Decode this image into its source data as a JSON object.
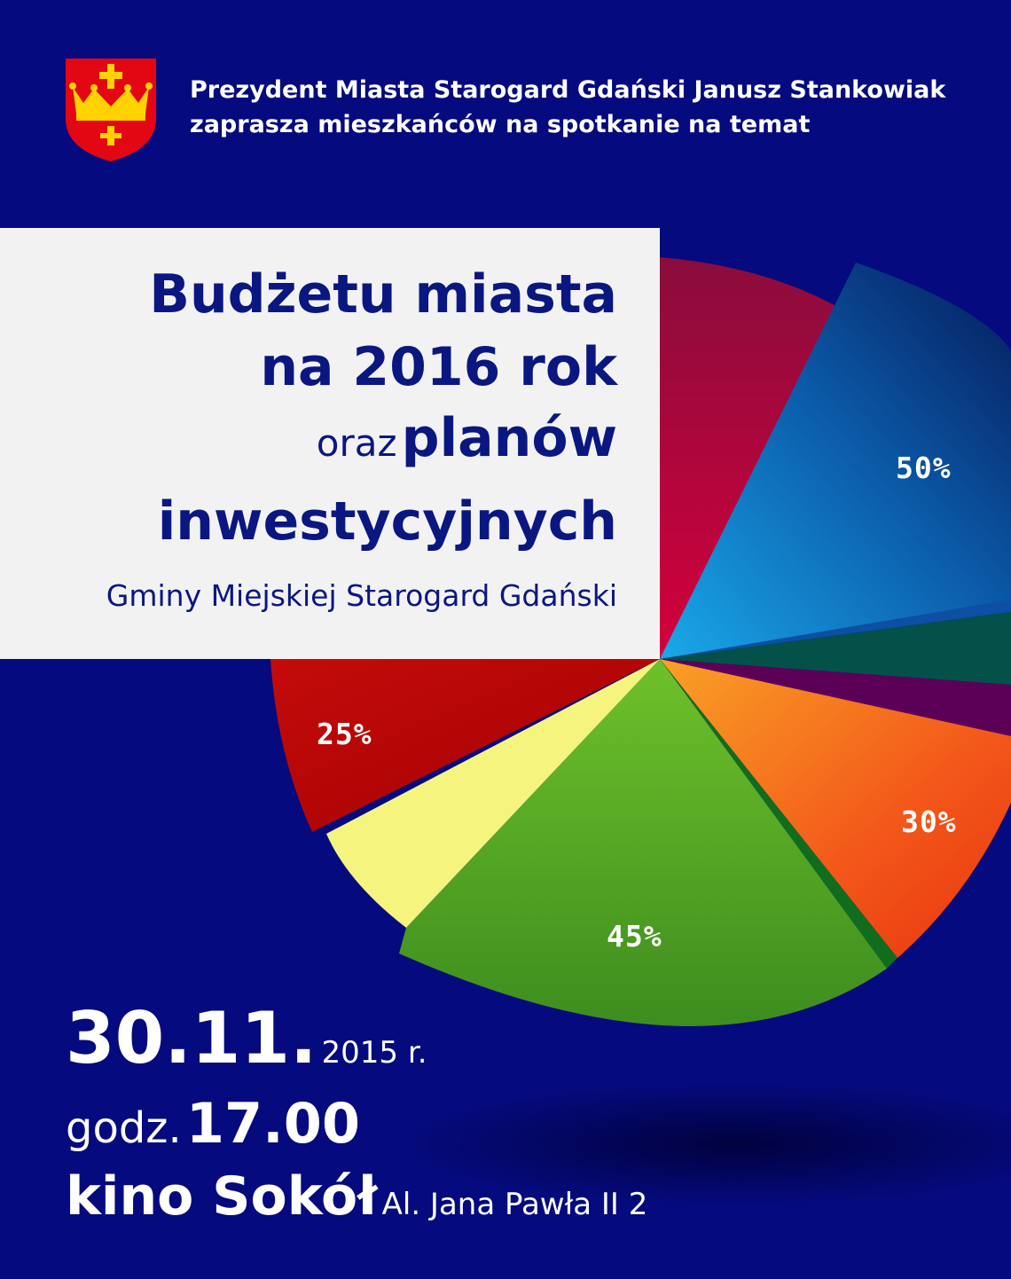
{
  "header": {
    "line1": "Prezydent Miasta Starogard Gdański Janusz Stankowiak",
    "line2": "zaprasza mieszkańców na spotkanie na temat"
  },
  "title": {
    "line1": "Budżetu miasta",
    "line2": "na 2016 rok",
    "line3_small": "oraz",
    "line3_big": "planów",
    "line4": "inwestycyjnych",
    "subtitle": "Gminy Miejskiej Starogard Gdański"
  },
  "pie_labels": {
    "blue": "50%",
    "red": "25%",
    "orange": "30%",
    "green": "45%"
  },
  "event": {
    "date_big": "30.11.",
    "date_year": "2015 r.",
    "time_prefix": "godz.",
    "time": "17.00",
    "venue": "kino Sokół",
    "address": "Al. Jana Pawła II 2"
  },
  "colors": {
    "background": "#050a7e",
    "title_box": "#f2f2f3",
    "title_text": "#0a1780",
    "crest_red": "#e30613",
    "crest_gold": "#ffd200"
  }
}
